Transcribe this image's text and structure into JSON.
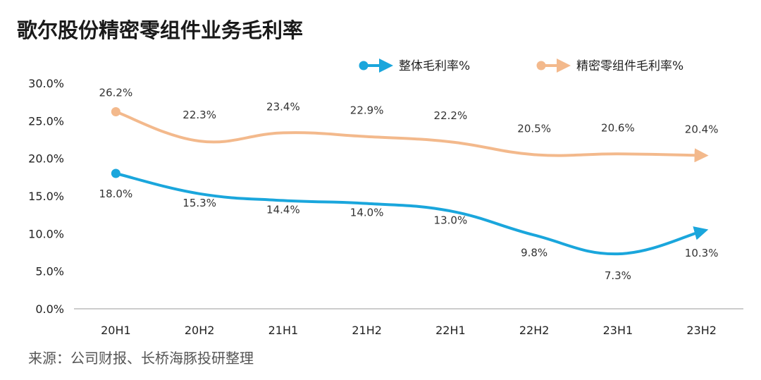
{
  "title": "歌尔股份精密零组件业务毛利率",
  "source": "来源：公司财报、长桥海豚投研整理",
  "colors": {
    "overall": "#1aa6dc",
    "precision": "#f3b98c",
    "axis": "#999999"
  },
  "chart_data": {
    "type": "line",
    "title": "歌尔股份精密零组件业务毛利率",
    "categories": [
      "20H1",
      "20H2",
      "21H1",
      "21H2",
      "22H1",
      "22H2",
      "23H1",
      "23H2"
    ],
    "yticks": [
      "0.0%",
      "5.0%",
      "10.0%",
      "15.0%",
      "20.0%",
      "25.0%",
      "30.0%"
    ],
    "ylim": [
      0,
      30
    ],
    "legend_position": "top-right",
    "series": [
      {
        "name": "整体毛利率%",
        "values": [
          18.0,
          15.3,
          14.4,
          14.0,
          13.0,
          9.8,
          7.3,
          10.3
        ],
        "labels": [
          "18.0%",
          "15.3%",
          "14.4%",
          "14.0%",
          "13.0%",
          "9.8%",
          "7.3%",
          "10.3%"
        ]
      },
      {
        "name": "精密零组件毛利率%",
        "values": [
          26.2,
          22.3,
          23.4,
          22.9,
          22.2,
          20.5,
          20.6,
          20.4
        ],
        "labels": [
          "26.2%",
          "22.3%",
          "23.4%",
          "22.9%",
          "22.2%",
          "20.5%",
          "20.6%",
          "20.4%"
        ]
      }
    ]
  }
}
